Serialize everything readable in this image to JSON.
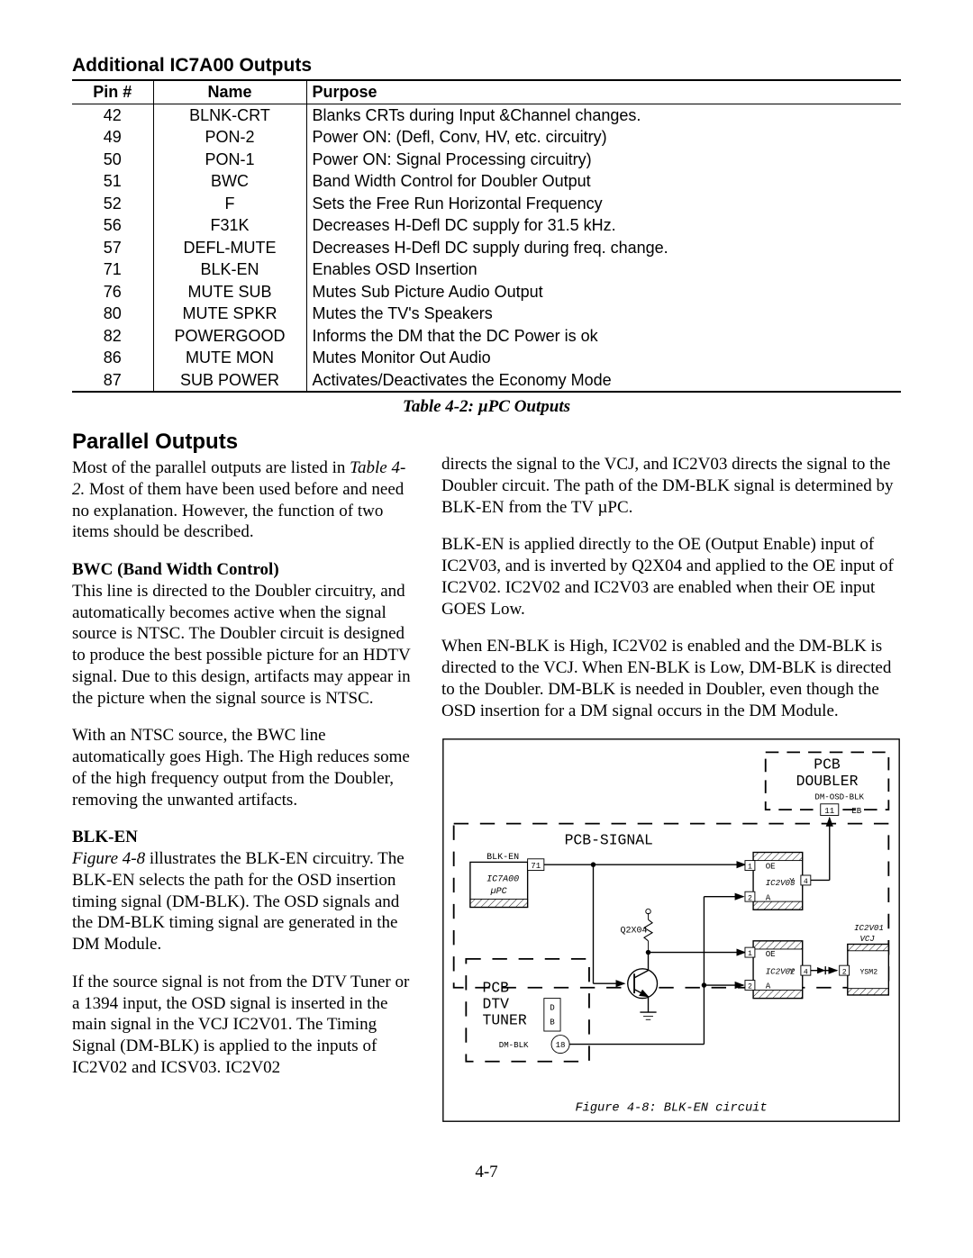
{
  "table": {
    "heading": "Additional IC7A00 Outputs",
    "caption": "Table 4-2: µPC Outputs",
    "columns": [
      "Pin #",
      "Name",
      "Purpose"
    ],
    "rows": [
      [
        "42",
        "BLNK-CRT",
        "Blanks CRTs during Input &Channel changes."
      ],
      [
        "49",
        "PON-2",
        "Power ON: (Defl, Conv, HV, etc. circuitry)"
      ],
      [
        "50",
        "PON-1",
        "Power ON: Signal Processing circuitry)"
      ],
      [
        "51",
        "BWC",
        "Band Width Control for Doubler Output"
      ],
      [
        "52",
        "F",
        "Sets the Free Run Horizontal Frequency"
      ],
      [
        "56",
        "F31K",
        "Decreases H-Defl DC supply for 31.5 kHz."
      ],
      [
        "57",
        "DEFL-MUTE",
        "Decreases H-Defl DC supply during freq. change."
      ],
      [
        "71",
        "BLK-EN",
        "Enables OSD Insertion"
      ],
      [
        "76",
        "MUTE SUB",
        "Mutes Sub Picture Audio Output"
      ],
      [
        "80",
        "MUTE SPKR",
        "Mutes the TV's Speakers"
      ],
      [
        "82",
        "POWERGOOD",
        "Informs the DM that the DC Power is ok"
      ],
      [
        "86",
        "MUTE MON",
        "Mutes Monitor Out Audio"
      ],
      [
        "87",
        "SUB POWER",
        "Activates/Deactivates the Economy Mode"
      ]
    ]
  },
  "body": {
    "parallel_h": "Parallel  Outputs",
    "parallel_1a": "Most of the parallel outputs are listed in ",
    "parallel_1b": "Table 4-2.",
    "parallel_1c": "  Most of them have been used before and need no explanation.  However, the function of two items should be described.",
    "bwc_h": "BWC (Band Width Control)",
    "bwc_1": "This line is directed to the Doubler circuitry, and automatically becomes active when the signal source is NTSC.  The Doubler circuit is designed to produce the best possible picture for an HDTV signal.  Due to this design, artifacts may appear in the picture when the signal source is NTSC.",
    "bwc_2": "With an NTSC source, the BWC line automatically goes High.  The High reduces some of the high frequency output from the Doubler, removing the unwanted artifacts.",
    "blken_h": "BLK-EN",
    "blken_1a": "Figure 4-8",
    "blken_1b": " illustrates the BLK-EN circuitry. The BLK-EN selects the path for the OSD insertion timing signal (DM-BLK).  The OSD signals and the DM-BLK timing signal are generated in the DM Module.",
    "blken_2": "If the source signal is not from the DTV Tuner or a 1394 input, the OSD signal is inserted in the main signal in the VCJ IC2V01.  The Timing Signal (DM-BLK) is applied to the inputs of IC2V02 and ICSV03.  IC2V02",
    "right_1": "directs the signal to the VCJ, and IC2V03 directs the signal to the Doubler circuit.  The path of the DM-BLK signal  is determined by BLK-EN from the TV µPC.",
    "right_2": "BLK-EN is applied directly to  the OE (Output Enable) input of IC2V03, and is inverted by Q2X04 and applied to the OE input of IC2V02.  IC2V02 and IC2V03 are enabled when their OE input GOES Low.",
    "right_3": "When EN-BLK is High,  IC2V02 is enabled and the DM-BLK is directed to the VCJ.  When EN-BLK is Low, DM-BLK is directed to the Doubler.  DM-BLK is  needed in Doubler, even though the OSD insertion for a DM signal occurs in the DM Module."
  },
  "figure": {
    "caption": "Figure 4-8: BLK-EN circuit",
    "labels": {
      "pcb_signal": "PCB-SIGNAL",
      "pcb_doubler1": "PCB",
      "pcb_doubler2": "DOUBLER",
      "dm_osd_blk": "DM-OSD-BLK",
      "blk_en": "BLK-EN",
      "ic7a00": "IC7A00",
      "upc": "µPC",
      "pin71": "71",
      "q2x04": "Q2X04",
      "ic2v03": "IC2V03",
      "ic2v02": "IC2V02",
      "oe": "OE",
      "y": "Y",
      "a": "A",
      "pin1": "1",
      "pin2": "2",
      "pin4": "4",
      "pin11": "11",
      "eb": "EB",
      "ic2v01": "IC2V01",
      "vcj": "VCJ",
      "ysm2": "YSM2",
      "pcb_dtv1": "PCB",
      "pcb_dtv2": "DTV",
      "pcb_dtv3": "TUNER",
      "d": "D",
      "b": "B",
      "dm_blk": "DM-BLK",
      "pin18": "18"
    }
  },
  "page_num": "4-7"
}
